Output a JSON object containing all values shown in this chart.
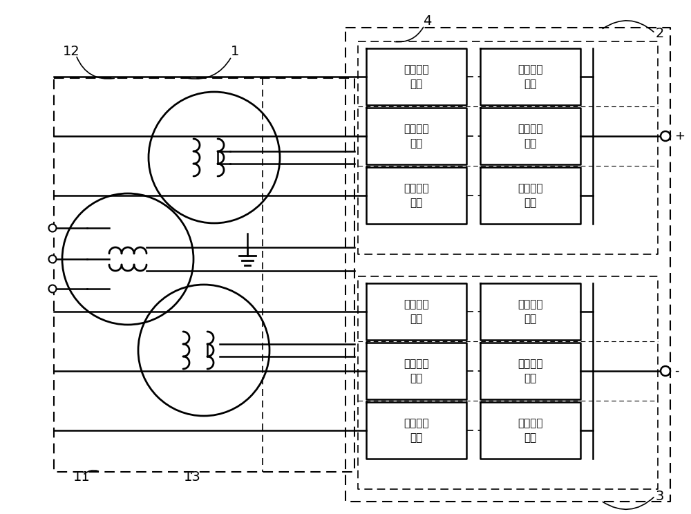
{
  "bg_color": "#ffffff",
  "line_color": "#000000",
  "box_text": "全桥功率\n模块",
  "label_1": "1",
  "label_2": "2",
  "label_3": "3",
  "label_4": "4",
  "label_11": "11",
  "label_12": "12",
  "label_13": "13",
  "plus_sign": "+",
  "minus_sign": "-",
  "figw": 10.0,
  "figh": 7.44,
  "dpi": 100
}
